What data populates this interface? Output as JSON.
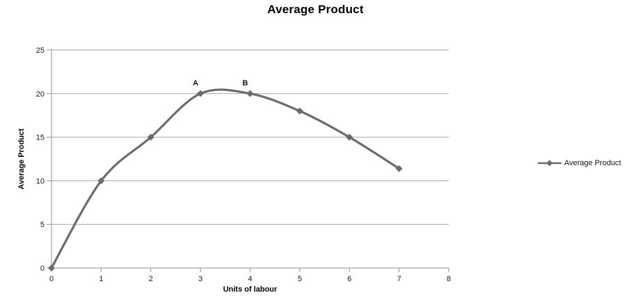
{
  "chart_data": {
    "type": "line",
    "title": "Average Product",
    "xlabel": "Units of labour",
    "ylabel": "Average Product",
    "series_name": "Average Product",
    "x": [
      0,
      1,
      2,
      3,
      4,
      5,
      6,
      7
    ],
    "values": [
      0,
      10,
      15,
      20,
      20,
      18,
      15,
      11.4
    ],
    "xlim": [
      0,
      8
    ],
    "ylim": [
      0,
      25
    ],
    "x_ticks": [
      0,
      1,
      2,
      3,
      4,
      5,
      6,
      7,
      8
    ],
    "y_ticks": [
      0,
      5,
      10,
      15,
      20,
      25
    ],
    "grid": "horizontal",
    "smooth": true,
    "marker": "diamond",
    "legend_position": "right",
    "annotations": [
      {
        "label": "A",
        "x": 3,
        "y": 20
      },
      {
        "label": "B",
        "x": 4,
        "y": 20
      }
    ],
    "colors": {
      "series": "#6b6b6b",
      "gridline": "#a6a6a6",
      "axis": "#8f8f8f",
      "text": "#141414",
      "annotation": "#000000",
      "background": "#ffffff"
    }
  }
}
